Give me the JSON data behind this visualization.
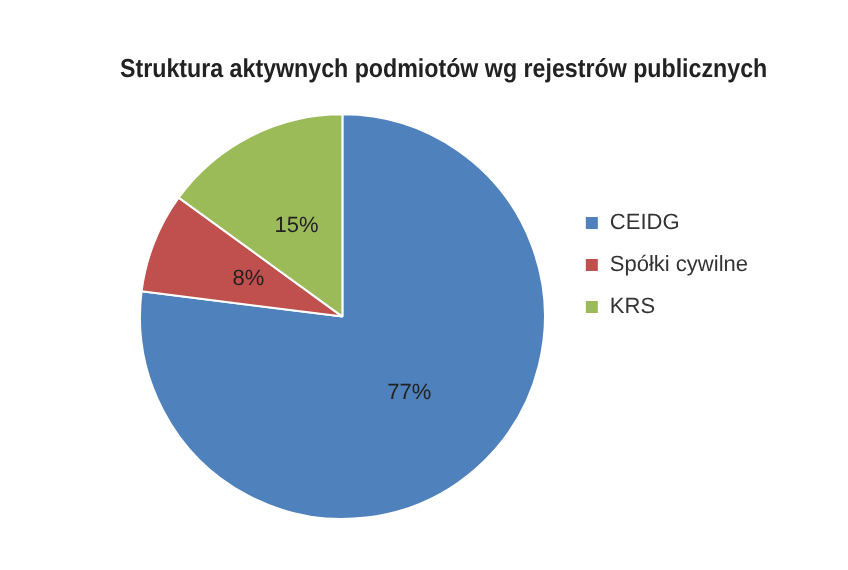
{
  "chart_data": {
    "type": "pie",
    "title": "Struktura aktywnych podmiotów wg rejestrów publicznych",
    "categories": [
      "CEIDG",
      "Spółki cywilne",
      "KRS"
    ],
    "values": [
      77,
      8,
      15
    ],
    "value_labels": [
      "77%",
      "8%",
      "15%"
    ],
    "colors": [
      "#4f81bd",
      "#c0504d",
      "#9bbb59"
    ],
    "legend": "right"
  }
}
